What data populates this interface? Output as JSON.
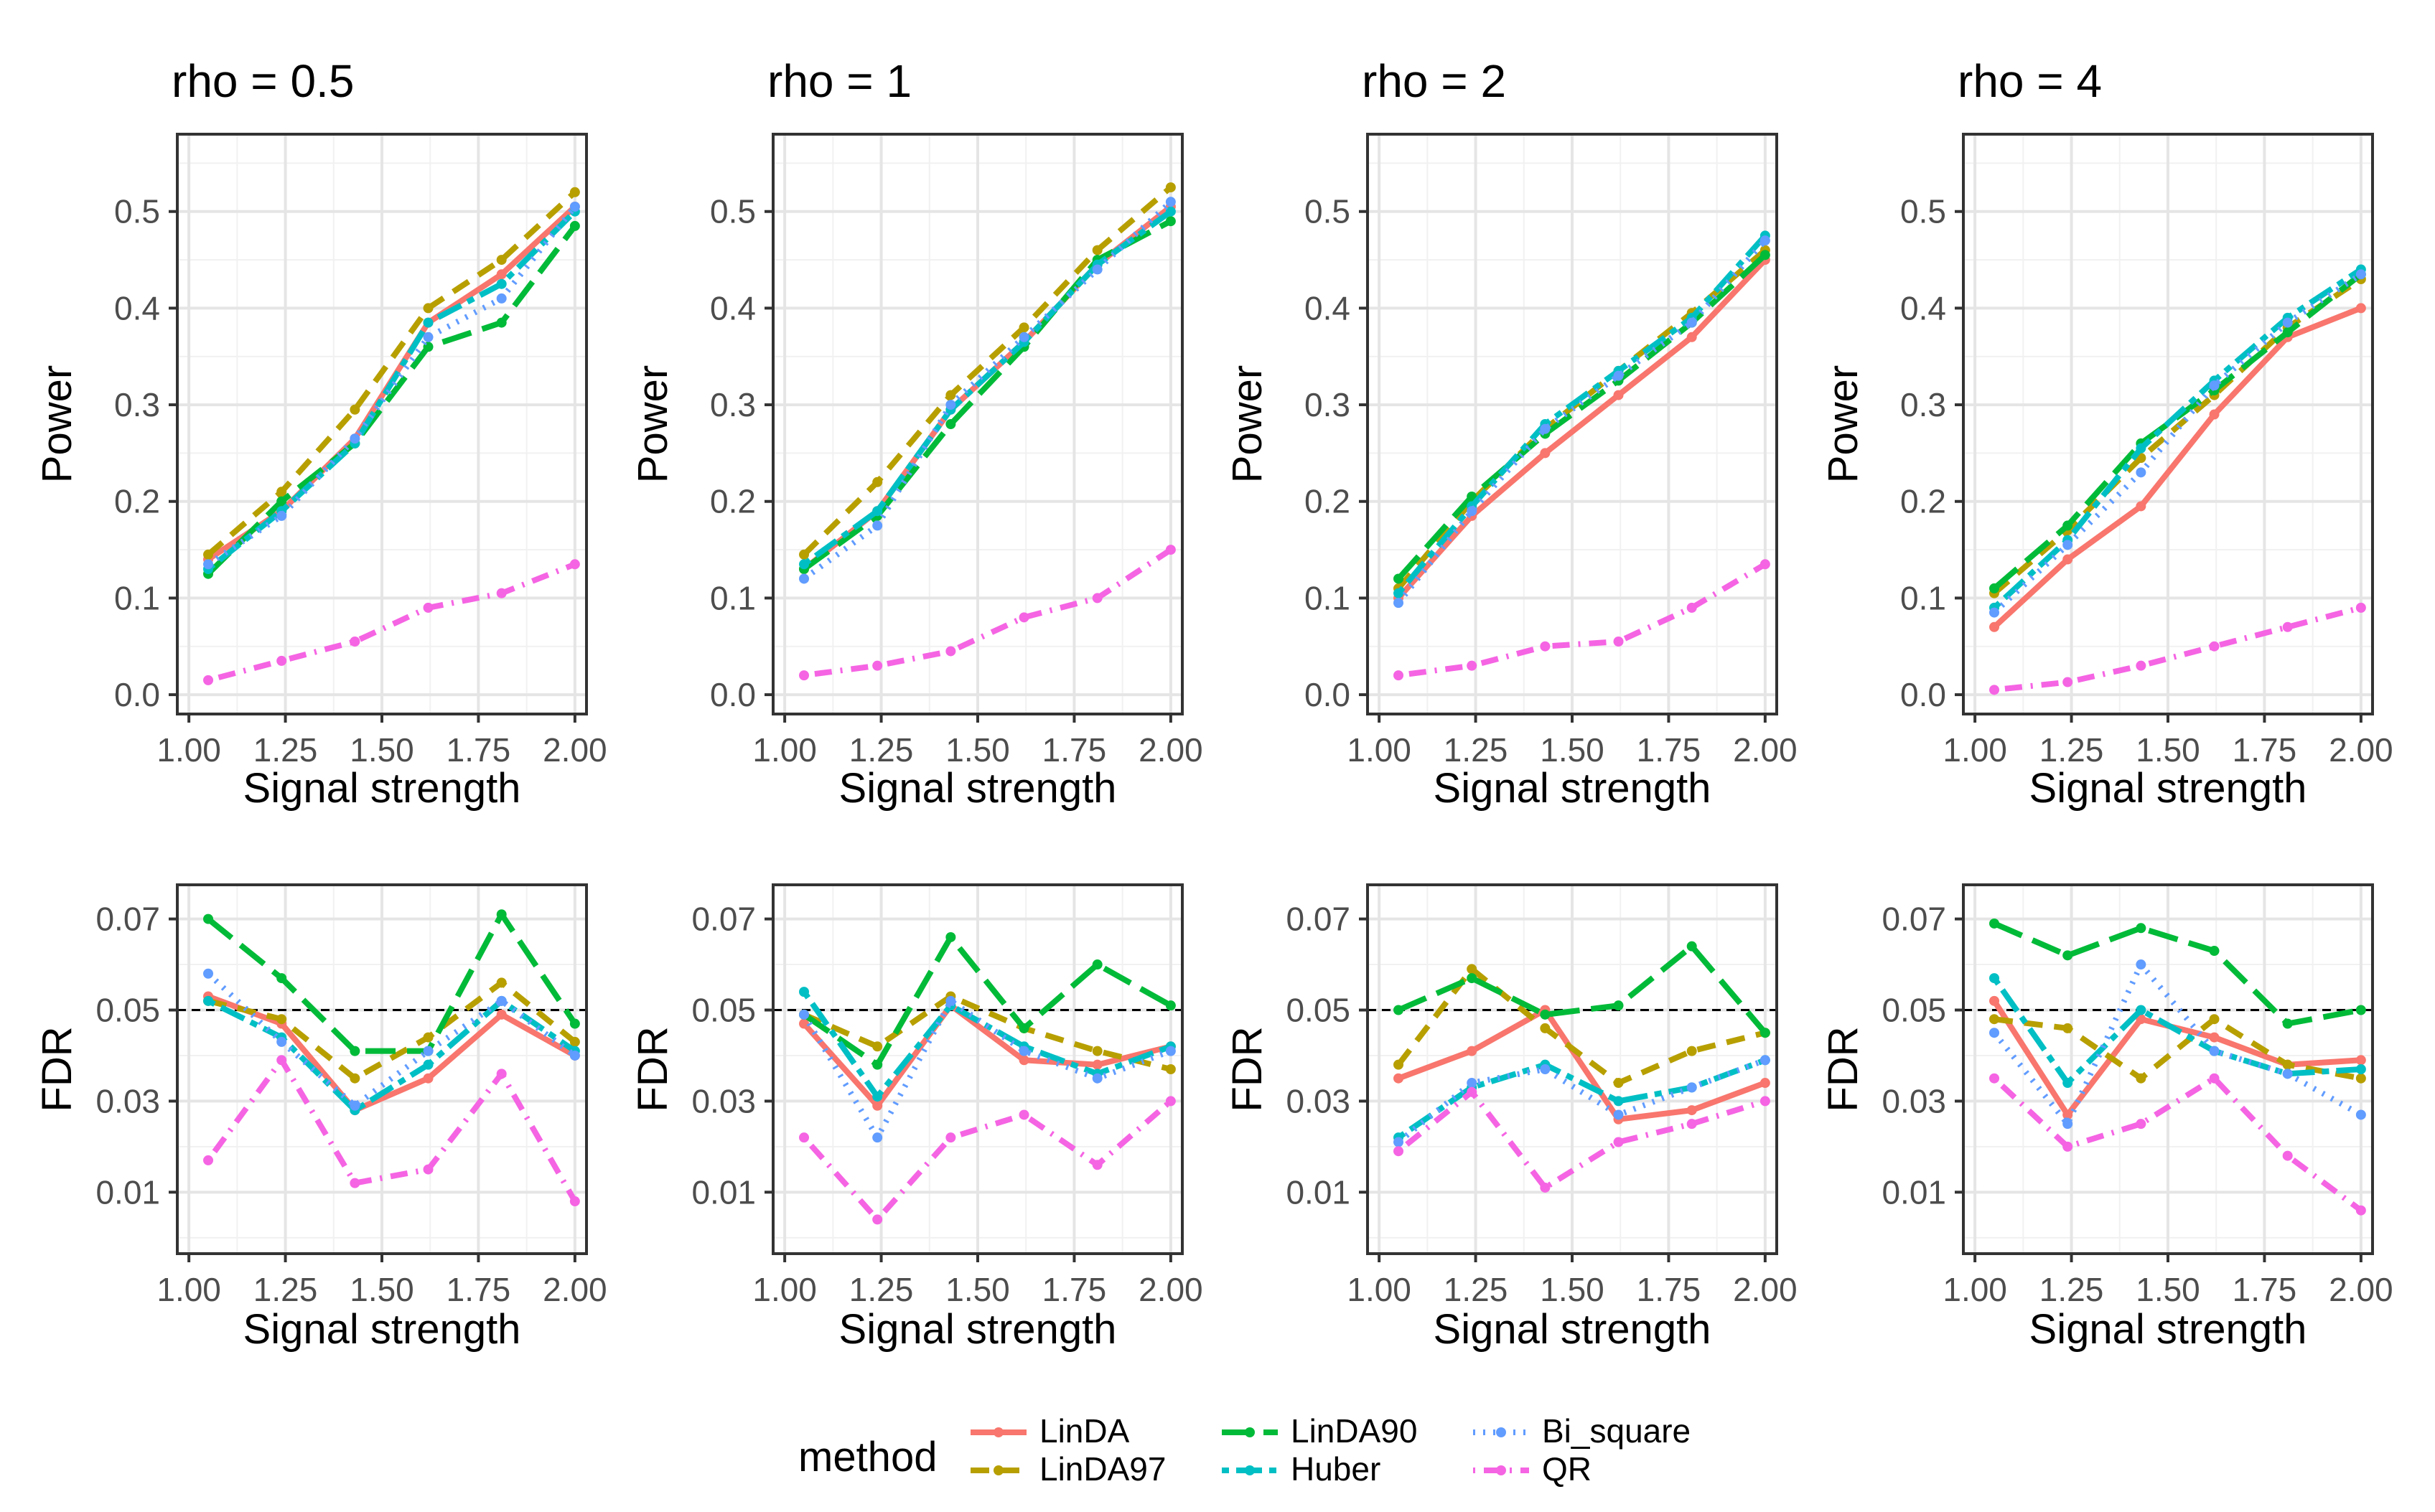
{
  "chart_data": {
    "type": "line",
    "x": [
      1.05,
      1.24,
      1.43,
      1.62,
      1.81,
      2.0
    ],
    "xlabel": "Signal strength",
    "xlim": [
      0.97,
      2.03
    ],
    "xticks": [
      "1.00",
      "1.25",
      "1.50",
      "1.75",
      "2.00"
    ],
    "xtick_values": [
      1.0,
      1.25,
      1.5,
      1.75,
      2.0
    ],
    "power_ylabel": "Power",
    "power_ylim": [
      -0.02,
      0.58
    ],
    "power_yticks": [
      "0.0",
      "0.1",
      "0.2",
      "0.3",
      "0.4",
      "0.5"
    ],
    "power_ytick_values": [
      0.0,
      0.1,
      0.2,
      0.3,
      0.4,
      0.5
    ],
    "fdr_ylabel": "FDR",
    "fdr_ylim": [
      -0.0035,
      0.0775
    ],
    "fdr_yticks": [
      "0.01",
      "0.03",
      "0.05",
      "0.07"
    ],
    "fdr_ytick_values": [
      0.01,
      0.03,
      0.05,
      0.07
    ],
    "fdr_reference": 0.05,
    "legend": {
      "title": "method",
      "position": "bottom",
      "entries": [
        {
          "name": "LinDA",
          "color": "#F8766D",
          "dash": "solid"
        },
        {
          "name": "LinDA97",
          "color": "#B79F00",
          "dash": "dashed"
        },
        {
          "name": "LinDA90",
          "color": "#00BA38",
          "dash": "longdash"
        },
        {
          "name": "Huber",
          "color": "#00BFC4",
          "dash": "twodash"
        },
        {
          "name": "Bi_square",
          "color": "#619CFF",
          "dash": "dotted"
        },
        {
          "name": "QR",
          "color": "#F564E3",
          "dash": "dotdash"
        }
      ]
    },
    "panels": [
      {
        "title": "rho = 0.5",
        "power": {
          "LinDA": [
            0.14,
            0.19,
            0.265,
            0.385,
            0.435,
            0.505
          ],
          "LinDA97": [
            0.145,
            0.21,
            0.295,
            0.4,
            0.45,
            0.52
          ],
          "LinDA90": [
            0.125,
            0.2,
            0.26,
            0.36,
            0.385,
            0.485
          ],
          "Huber": [
            0.13,
            0.19,
            0.26,
            0.385,
            0.425,
            0.5
          ],
          "Bi_square": [
            0.135,
            0.185,
            0.265,
            0.37,
            0.41,
            0.505
          ],
          "QR": [
            0.015,
            0.035,
            0.055,
            0.09,
            0.105,
            0.135
          ]
        },
        "fdr": {
          "LinDA": [
            0.053,
            0.047,
            0.028,
            0.035,
            0.049,
            0.04
          ],
          "LinDA97": [
            0.052,
            0.048,
            0.035,
            0.044,
            0.056,
            0.043
          ],
          "LinDA90": [
            0.07,
            0.057,
            0.041,
            0.041,
            0.071,
            0.047
          ],
          "Huber": [
            0.052,
            0.044,
            0.028,
            0.038,
            0.052,
            0.041
          ],
          "Bi_square": [
            0.058,
            0.043,
            0.029,
            0.041,
            0.052,
            0.04
          ],
          "QR": [
            0.017,
            0.039,
            0.012,
            0.015,
            0.036,
            0.008
          ]
        }
      },
      {
        "title": "rho = 1",
        "power": {
          "LinDA": [
            0.13,
            0.19,
            0.295,
            0.365,
            0.445,
            0.505
          ],
          "LinDA97": [
            0.145,
            0.22,
            0.31,
            0.38,
            0.46,
            0.525
          ],
          "LinDA90": [
            0.13,
            0.185,
            0.28,
            0.36,
            0.45,
            0.49
          ],
          "Huber": [
            0.135,
            0.19,
            0.295,
            0.365,
            0.445,
            0.5
          ],
          "Bi_square": [
            0.12,
            0.175,
            0.3,
            0.37,
            0.44,
            0.51
          ],
          "QR": [
            0.02,
            0.03,
            0.045,
            0.08,
            0.1,
            0.15
          ]
        },
        "fdr": {
          "LinDA": [
            0.047,
            0.029,
            0.051,
            0.039,
            0.038,
            0.042
          ],
          "LinDA97": [
            0.049,
            0.042,
            0.053,
            0.046,
            0.041,
            0.037
          ],
          "LinDA90": [
            0.049,
            0.038,
            0.066,
            0.046,
            0.06,
            0.051
          ],
          "Huber": [
            0.054,
            0.031,
            0.051,
            0.042,
            0.036,
            0.042
          ],
          "Bi_square": [
            0.049,
            0.022,
            0.052,
            0.041,
            0.035,
            0.041
          ],
          "QR": [
            0.022,
            0.004,
            0.022,
            0.027,
            0.016,
            0.03
          ]
        }
      },
      {
        "title": "rho = 2",
        "power": {
          "LinDA": [
            0.1,
            0.185,
            0.25,
            0.31,
            0.37,
            0.45
          ],
          "LinDA97": [
            0.11,
            0.2,
            0.275,
            0.335,
            0.395,
            0.46
          ],
          "LinDA90": [
            0.12,
            0.205,
            0.27,
            0.325,
            0.385,
            0.455
          ],
          "Huber": [
            0.105,
            0.195,
            0.28,
            0.335,
            0.39,
            0.475
          ],
          "Bi_square": [
            0.095,
            0.19,
            0.275,
            0.33,
            0.385,
            0.47
          ],
          "QR": [
            0.02,
            0.03,
            0.05,
            0.055,
            0.09,
            0.135
          ]
        },
        "fdr": {
          "LinDA": [
            0.035,
            0.041,
            0.05,
            0.026,
            0.028,
            0.034
          ],
          "LinDA97": [
            0.038,
            0.059,
            0.046,
            0.034,
            0.041,
            0.045
          ],
          "LinDA90": [
            0.05,
            0.057,
            0.049,
            0.051,
            0.064,
            0.045
          ],
          "Huber": [
            0.022,
            0.033,
            0.038,
            0.03,
            0.033,
            0.039
          ],
          "Bi_square": [
            0.021,
            0.034,
            0.037,
            0.027,
            0.033,
            0.039
          ],
          "QR": [
            0.019,
            0.032,
            0.011,
            0.021,
            0.025,
            0.03
          ]
        }
      },
      {
        "title": "rho = 4",
        "power": {
          "LinDA": [
            0.07,
            0.14,
            0.195,
            0.29,
            0.37,
            0.4
          ],
          "LinDA97": [
            0.105,
            0.17,
            0.245,
            0.31,
            0.38,
            0.43
          ],
          "LinDA90": [
            0.11,
            0.175,
            0.26,
            0.315,
            0.375,
            0.435
          ],
          "Huber": [
            0.09,
            0.16,
            0.255,
            0.325,
            0.39,
            0.44
          ],
          "Bi_square": [
            0.085,
            0.155,
            0.23,
            0.32,
            0.385,
            0.435
          ],
          "QR": [
            0.005,
            0.013,
            0.03,
            0.05,
            0.07,
            0.09
          ]
        },
        "fdr": {
          "LinDA": [
            0.052,
            0.027,
            0.048,
            0.044,
            0.038,
            0.039
          ],
          "LinDA97": [
            0.048,
            0.046,
            0.035,
            0.048,
            0.038,
            0.035
          ],
          "LinDA90": [
            0.069,
            0.062,
            0.068,
            0.063,
            0.047,
            0.05
          ],
          "Huber": [
            0.057,
            0.034,
            0.05,
            0.041,
            0.036,
            0.037
          ],
          "Bi_square": [
            0.045,
            0.025,
            0.06,
            0.041,
            0.036,
            0.027
          ],
          "QR": [
            0.035,
            0.02,
            0.025,
            0.035,
            0.018,
            0.006
          ]
        }
      }
    ]
  }
}
